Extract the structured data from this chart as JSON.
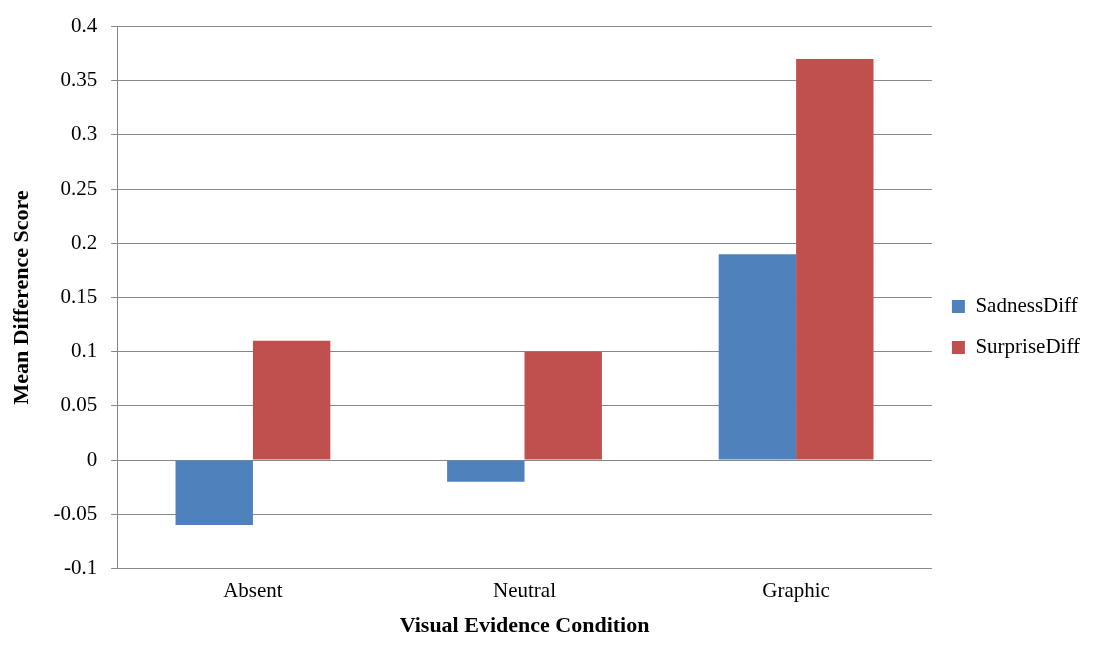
{
  "chart_data": {
    "type": "bar",
    "xlabel": "Visual Evidence Condition",
    "ylabel": "Mean Difference Score",
    "categories": [
      "Absent",
      "Neutral",
      "Graphic"
    ],
    "series": [
      {
        "name": "SadnessDiff",
        "color": "#4f81bd",
        "values": [
          -0.06,
          -0.02,
          0.19
        ]
      },
      {
        "name": "SurpriseDiff",
        "color": "#c0504d",
        "values": [
          0.11,
          0.1,
          0.37
        ]
      }
    ],
    "ylim": [
      -0.1,
      0.4
    ],
    "yticks": [
      -0.1,
      -0.05,
      0,
      0.05,
      0.1,
      0.15,
      0.2,
      0.25,
      0.3,
      0.35,
      0.4
    ],
    "grid": "y",
    "legend": "right"
  }
}
